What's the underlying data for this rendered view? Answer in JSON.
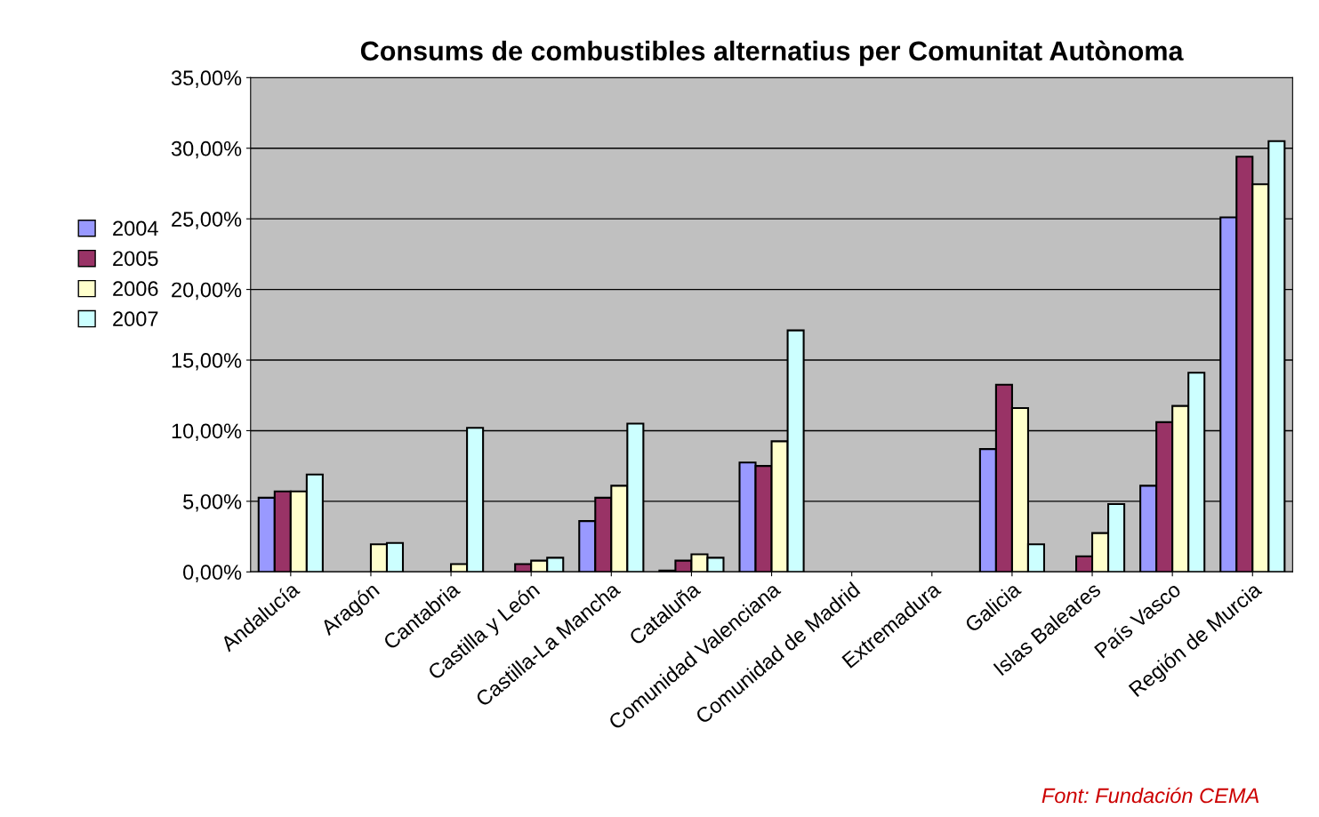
{
  "chart_data": {
    "type": "bar",
    "title": "Consums de combustibles alternatius per Comunitat Autònoma",
    "categories": [
      "Andalucía",
      "Aragón",
      "Cantabria",
      "Castilla y León",
      "Castilla-La Mancha",
      "Cataluña",
      "Comunidad Valenciana",
      "Comunidad de Madrid",
      "Extremadura",
      "Galicia",
      "Islas Baleares",
      "País Vasco",
      "Región de Murcia"
    ],
    "series": [
      {
        "name": "2004",
        "color": "#9999ff",
        "values": [
          5.25,
          null,
          null,
          null,
          3.6,
          0.1,
          7.75,
          null,
          null,
          8.7,
          null,
          6.1,
          25.1
        ]
      },
      {
        "name": "2005",
        "color": "#993366",
        "values": [
          5.7,
          null,
          null,
          0.55,
          5.25,
          0.8,
          7.5,
          null,
          null,
          13.25,
          1.1,
          10.6,
          29.4
        ]
      },
      {
        "name": "2006",
        "color": "#ffffcc",
        "values": [
          5.7,
          1.95,
          0.55,
          0.8,
          6.1,
          1.25,
          9.25,
          null,
          null,
          11.6,
          2.75,
          11.75,
          27.45
        ]
      },
      {
        "name": "2007",
        "color": "#ccffff",
        "values": [
          6.9,
          2.05,
          10.2,
          1.0,
          10.5,
          1.0,
          17.1,
          null,
          null,
          1.95,
          4.8,
          14.1,
          30.5
        ]
      }
    ],
    "ylim": [
      0,
      35
    ],
    "yticks": [
      {
        "value": 0,
        "label": "0,00%"
      },
      {
        "value": 5,
        "label": "5,00%"
      },
      {
        "value": 10,
        "label": "10,00%"
      },
      {
        "value": 15,
        "label": "15,00%"
      },
      {
        "value": 20,
        "label": "20,00%"
      },
      {
        "value": 25,
        "label": "25,00%"
      },
      {
        "value": 30,
        "label": "30,00%"
      },
      {
        "value": 35,
        "label": "35,00%"
      }
    ],
    "grid": "y",
    "legend": "left",
    "annotations": [
      "Font: Fundación CEMA"
    ]
  }
}
